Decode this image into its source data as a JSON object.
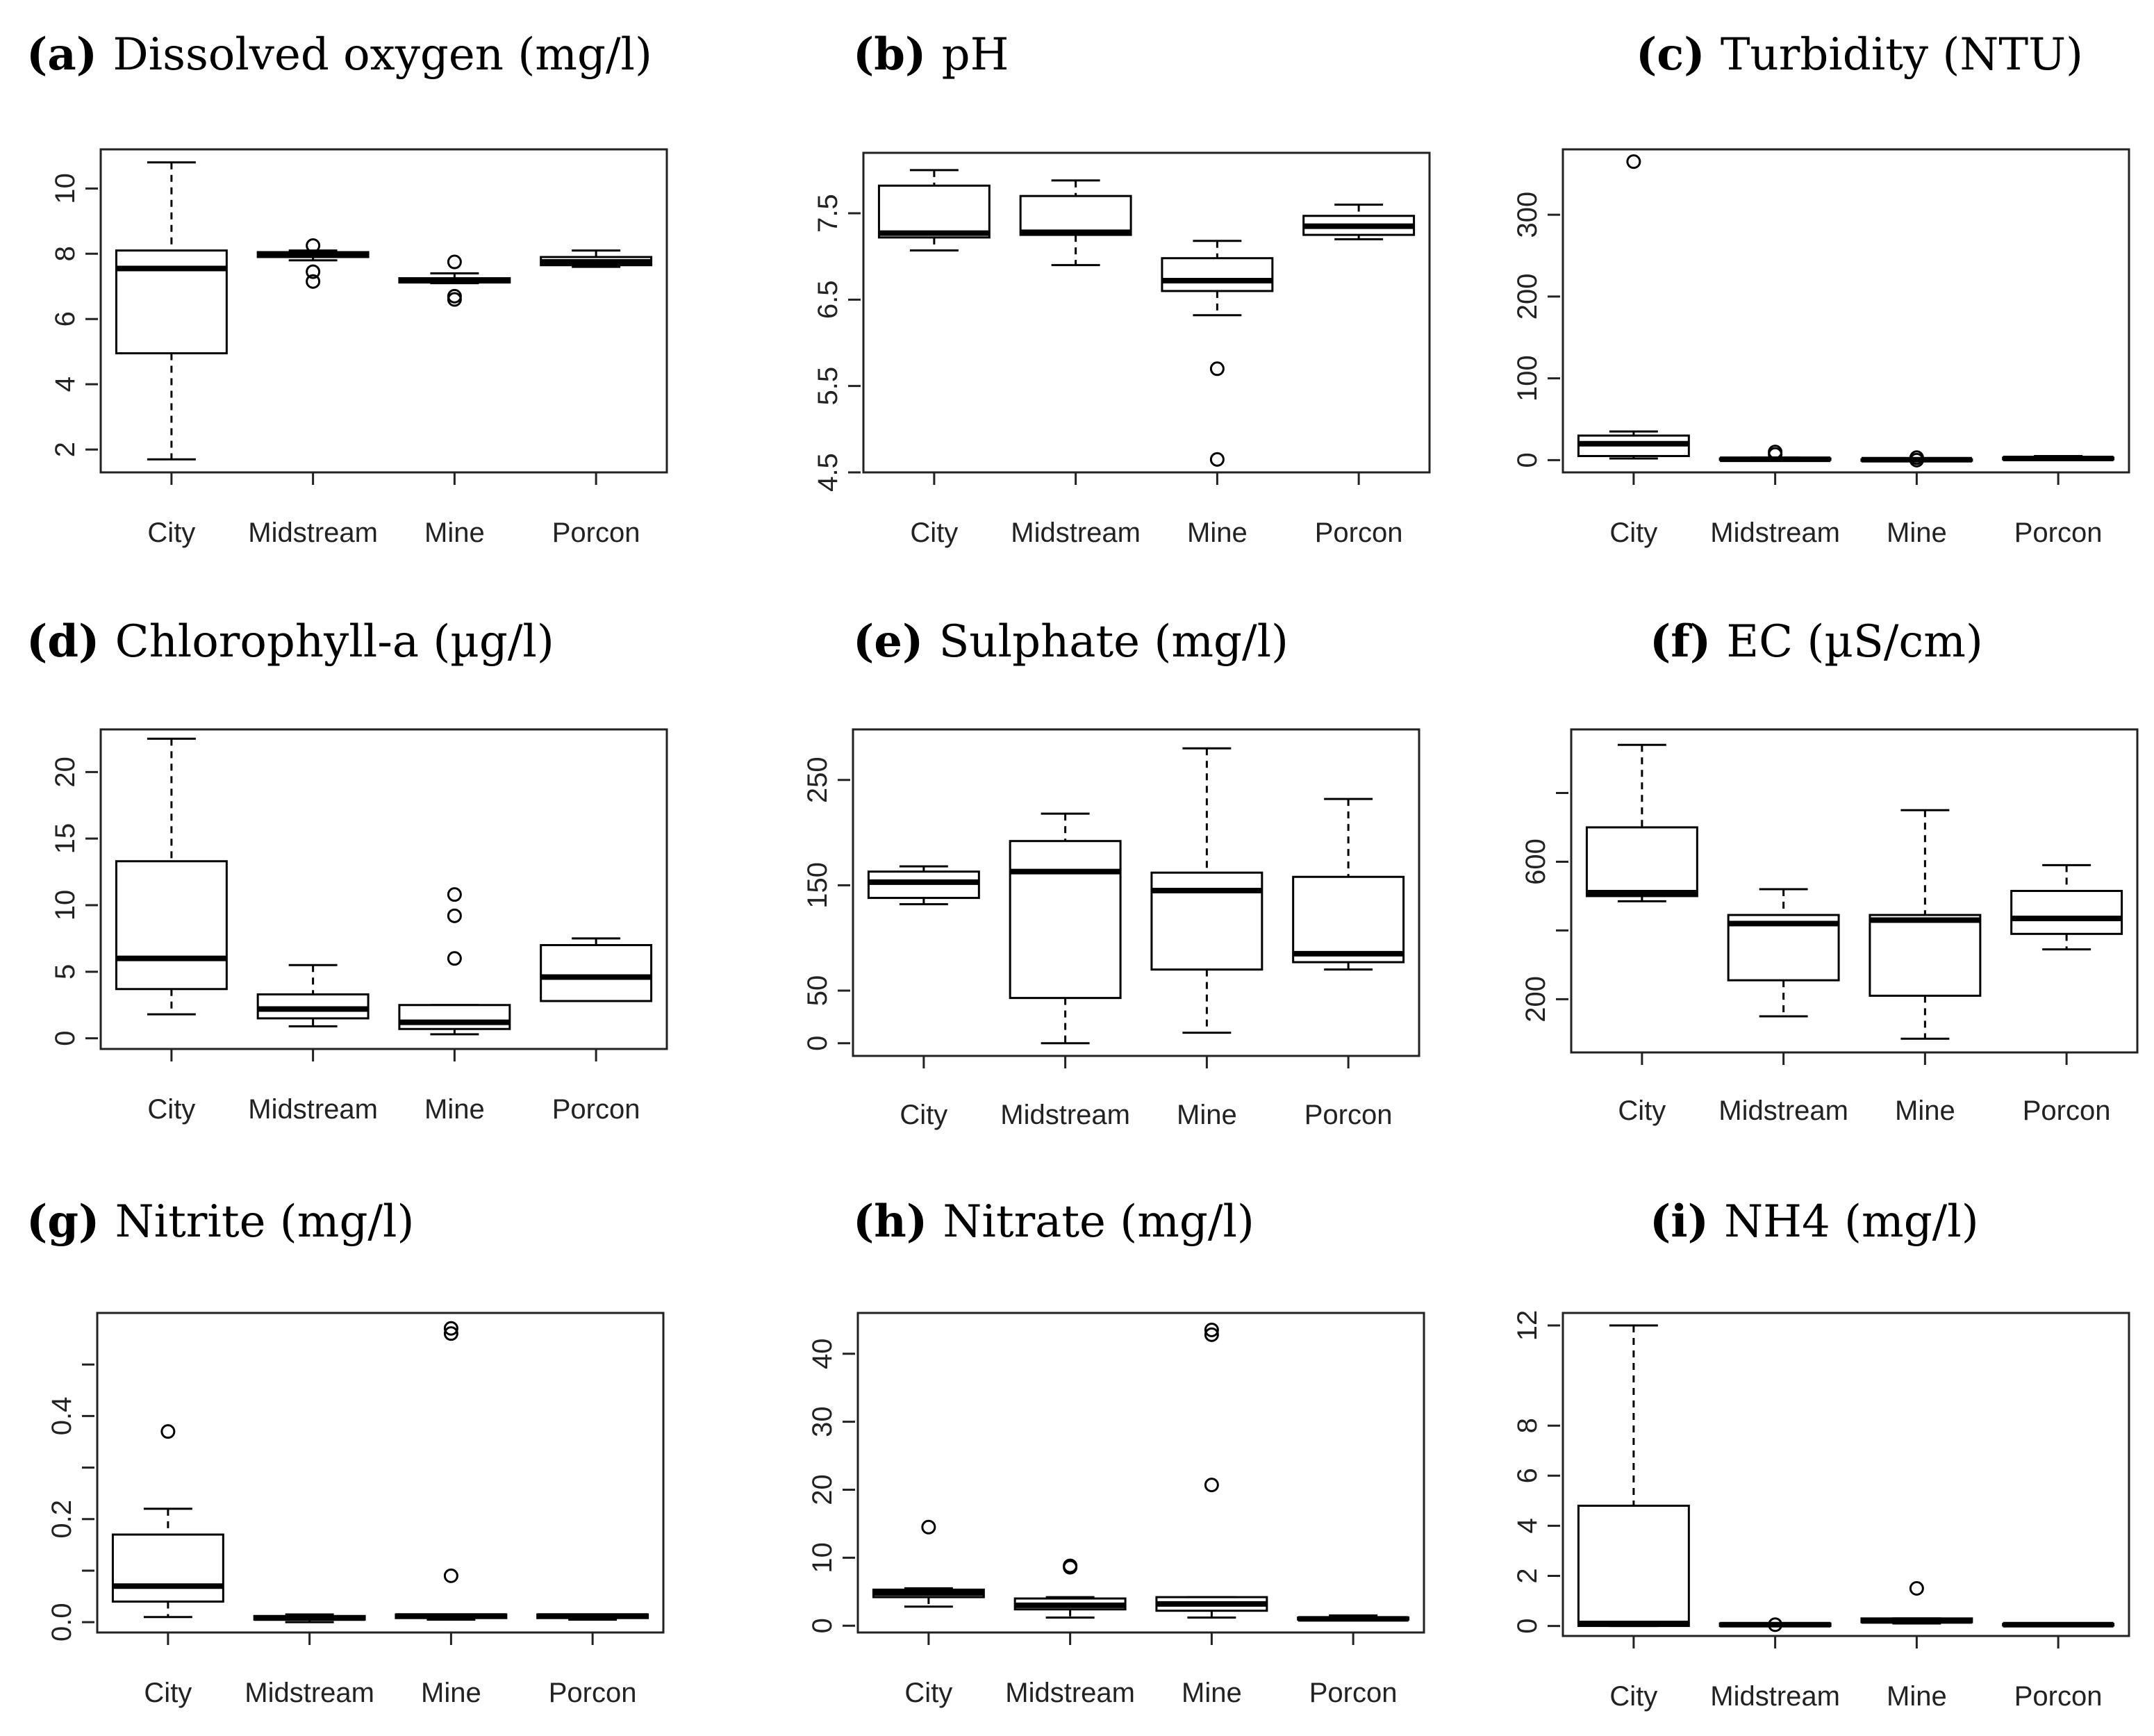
{
  "chart_data": [
    {
      "type": "box",
      "letter": "(a)",
      "title": "Dissolved oxygen (mg/l)",
      "categories": [
        "City",
        "Midstream",
        "Mine",
        "Porcon"
      ],
      "ylim": [
        1.3,
        11.2
      ],
      "yticks": [
        2,
        4,
        6,
        8,
        10
      ],
      "ytick_labels": [
        "2",
        "4",
        "6",
        "8",
        "10"
      ],
      "boxes": [
        {
          "min": 1.7,
          "q1": 4.95,
          "median": 7.55,
          "q3": 8.1,
          "max": 10.8,
          "outliers": []
        },
        {
          "min": 7.8,
          "q1": 7.9,
          "median": 7.97,
          "q3": 8.05,
          "max": 8.1,
          "outliers": [
            8.25,
            7.45,
            7.15
          ]
        },
        {
          "min": 7.1,
          "q1": 7.12,
          "median": 7.18,
          "q3": 7.25,
          "max": 7.4,
          "outliers": [
            7.75,
            6.7,
            6.6
          ]
        },
        {
          "min": 7.6,
          "q1": 7.65,
          "median": 7.75,
          "q3": 7.9,
          "max": 8.1,
          "outliers": []
        }
      ]
    },
    {
      "type": "box",
      "letter": "(b)",
      "title": "pH",
      "categories": [
        "City",
        "Midstream",
        "Mine",
        "Porcon"
      ],
      "ylim": [
        4.5,
        8.2
      ],
      "yticks": [
        4.5,
        5.5,
        6.5,
        7.5
      ],
      "ytick_labels": [
        "4.5",
        "5.5",
        "6.5",
        "7.5"
      ],
      "boxes": [
        {
          "min": 7.07,
          "q1": 7.22,
          "median": 7.27,
          "q3": 7.82,
          "max": 8.0,
          "outliers": []
        },
        {
          "min": 6.9,
          "q1": 7.25,
          "median": 7.28,
          "q3": 7.7,
          "max": 7.88,
          "outliers": []
        },
        {
          "min": 6.32,
          "q1": 6.6,
          "median": 6.72,
          "q3": 6.98,
          "max": 7.18,
          "outliers": [
            5.7,
            4.65
          ]
        },
        {
          "min": 7.2,
          "q1": 7.25,
          "median": 7.35,
          "q3": 7.47,
          "max": 7.6,
          "outliers": []
        }
      ]
    },
    {
      "type": "box",
      "letter": "(c)",
      "title": "Turbidity (NTU)",
      "categories": [
        "City",
        "Midstream",
        "Mine",
        "Porcon"
      ],
      "ylim": [
        -15,
        380
      ],
      "yticks": [
        0,
        100,
        200,
        300
      ],
      "ytick_labels": [
        "0",
        "100",
        "200",
        "300"
      ],
      "boxes": [
        {
          "min": 2,
          "q1": 5,
          "median": 20,
          "q3": 30,
          "max": 35,
          "outliers": [
            365
          ]
        },
        {
          "min": 0,
          "q1": 0.5,
          "median": 1,
          "q3": 2,
          "max": 3,
          "outliers": [
            10,
            7
          ]
        },
        {
          "min": 0,
          "q1": 0,
          "median": 0.5,
          "q3": 1,
          "max": 2,
          "outliers": [
            3,
            0
          ]
        },
        {
          "min": 0,
          "q1": 1,
          "median": 2,
          "q3": 3,
          "max": 5,
          "outliers": []
        }
      ]
    },
    {
      "type": "box",
      "letter": "(d)",
      "title": "Chlorophyll-a (µg/l)",
      "categories": [
        "City",
        "Midstream",
        "Mine",
        "Porcon"
      ],
      "ylim": [
        -0.8,
        23.2
      ],
      "yticks": [
        0,
        5,
        10,
        15,
        20
      ],
      "ytick_labels": [
        "0",
        "5",
        "10",
        "15",
        "20"
      ],
      "boxes": [
        {
          "min": 1.8,
          "q1": 3.7,
          "median": 6.0,
          "q3": 13.3,
          "max": 22.5,
          "outliers": []
        },
        {
          "min": 0.9,
          "q1": 1.5,
          "median": 2.2,
          "q3": 3.3,
          "max": 5.5,
          "outliers": []
        },
        {
          "min": 0.3,
          "q1": 0.7,
          "median": 1.2,
          "q3": 2.5,
          "max": 2.5,
          "outliers": [
            10.8,
            9.2,
            6.0
          ]
        },
        {
          "min": 2.8,
          "q1": 2.8,
          "median": 4.6,
          "q3": 7.0,
          "max": 7.5,
          "outliers": []
        }
      ]
    },
    {
      "type": "box",
      "letter": "(e)",
      "title": "Sulphate (mg/l)",
      "categories": [
        "City",
        "Midstream",
        "Mine",
        "Porcon"
      ],
      "ylim": [
        -12,
        298
      ],
      "yticks": [
        0,
        50,
        150,
        250
      ],
      "ytick_labels": [
        "0",
        "50",
        "150",
        "250"
      ],
      "boxes": [
        {
          "min": 132,
          "q1": 138,
          "median": 153,
          "q3": 163,
          "max": 168,
          "outliers": []
        },
        {
          "min": 0,
          "q1": 43,
          "median": 163,
          "q3": 192,
          "max": 218,
          "outliers": []
        },
        {
          "min": 10,
          "q1": 70,
          "median": 145,
          "q3": 162,
          "max": 280,
          "outliers": []
        },
        {
          "min": 70,
          "q1": 77,
          "median": 85,
          "q3": 158,
          "max": 232,
          "outliers": []
        }
      ]
    },
    {
      "type": "box",
      "letter": "(f)",
      "title": "EC (µS/cm)",
      "categories": [
        "City",
        "Midstream",
        "Mine",
        "Porcon"
      ],
      "ylim": [
        45,
        985
      ],
      "yticks": [
        200,
        400,
        600,
        800
      ],
      "ytick_labels": [
        "200",
        "",
        "600",
        ""
      ],
      "boxes": [
        {
          "min": 485,
          "q1": 500,
          "median": 510,
          "q3": 700,
          "max": 940,
          "outliers": []
        },
        {
          "min": 150,
          "q1": 255,
          "median": 420,
          "q3": 445,
          "max": 520,
          "outliers": []
        },
        {
          "min": 85,
          "q1": 210,
          "median": 430,
          "q3": 445,
          "max": 750,
          "outliers": []
        },
        {
          "min": 345,
          "q1": 390,
          "median": 435,
          "q3": 515,
          "max": 590,
          "outliers": []
        }
      ]
    },
    {
      "type": "box",
      "letter": "(g)",
      "title": "Nitrite (mg/l)",
      "categories": [
        "City",
        "Midstream",
        "Mine",
        "Porcon"
      ],
      "ylim": [
        -0.02,
        0.6
      ],
      "yticks": [
        0.0,
        0.1,
        0.2,
        0.3,
        0.4,
        0.5
      ],
      "ytick_labels": [
        "0.0",
        "",
        "0.2",
        "",
        "0.4",
        ""
      ],
      "boxes": [
        {
          "min": 0.01,
          "q1": 0.04,
          "median": 0.07,
          "q3": 0.17,
          "max": 0.22,
          "outliers": [
            0.37
          ]
        },
        {
          "min": 0.0,
          "q1": 0.005,
          "median": 0.008,
          "q3": 0.012,
          "max": 0.015,
          "outliers": []
        },
        {
          "min": 0.005,
          "q1": 0.008,
          "median": 0.012,
          "q3": 0.015,
          "max": 0.015,
          "outliers": [
            0.57,
            0.56,
            0.09
          ]
        },
        {
          "min": 0.005,
          "q1": 0.008,
          "median": 0.012,
          "q3": 0.015,
          "max": 0.015,
          "outliers": []
        }
      ]
    },
    {
      "type": "box",
      "letter": "(h)",
      "title": "Nitrate (mg/l)",
      "categories": [
        "City",
        "Midstream",
        "Mine",
        "Porcon"
      ],
      "ylim": [
        -1,
        46
      ],
      "yticks": [
        0,
        10,
        20,
        30,
        40
      ],
      "ytick_labels": [
        "0",
        "10",
        "20",
        "30",
        "40"
      ],
      "boxes": [
        {
          "min": 2.8,
          "q1": 4.2,
          "median": 4.8,
          "q3": 5.3,
          "max": 5.5,
          "outliers": [
            14.5
          ]
        },
        {
          "min": 1.2,
          "q1": 2.4,
          "median": 3.0,
          "q3": 4.0,
          "max": 4.2,
          "outliers": [
            8.8,
            8.6
          ]
        },
        {
          "min": 1.2,
          "q1": 2.2,
          "median": 3.2,
          "q3": 4.2,
          "max": 4.2,
          "outliers": [
            43.5,
            42.8,
            20.7
          ]
        },
        {
          "min": 0.8,
          "q1": 0.9,
          "median": 1.0,
          "q3": 1.2,
          "max": 1.5,
          "outliers": []
        }
      ]
    },
    {
      "type": "box",
      "letter": "(i)",
      "title": "NH4 (mg/l)",
      "categories": [
        "City",
        "Midstream",
        "Mine",
        "Porcon"
      ],
      "ylim": [
        -0.4,
        12.5
      ],
      "yticks": [
        0,
        2,
        4,
        6,
        8,
        12
      ],
      "ytick_labels": [
        "0",
        "2",
        "4",
        "6",
        "8",
        "12"
      ],
      "boxes": [
        {
          "min": 0.0,
          "q1": 0.0,
          "median": 0.1,
          "q3": 4.8,
          "max": 12.0,
          "outliers": []
        },
        {
          "min": 0.0,
          "q1": 0.0,
          "median": 0.05,
          "q3": 0.1,
          "max": 0.1,
          "outliers": [
            0.05
          ]
        },
        {
          "min": 0.1,
          "q1": 0.15,
          "median": 0.2,
          "q3": 0.3,
          "max": 0.3,
          "outliers": [
            1.5
          ]
        },
        {
          "min": 0.0,
          "q1": 0.02,
          "median": 0.05,
          "q3": 0.08,
          "max": 0.1,
          "outliers": []
        }
      ]
    }
  ]
}
